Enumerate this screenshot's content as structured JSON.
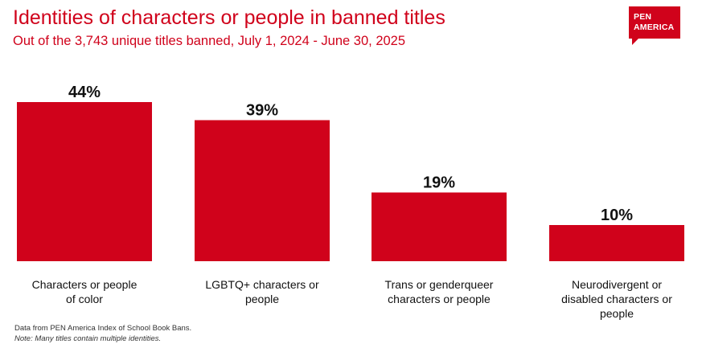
{
  "header": {
    "title": "Identities of characters or people in banned titles",
    "subtitle": "Out of the 3,743 unique titles banned, July 1, 2024 - June 30, 2025"
  },
  "logo": {
    "line1": "PEN",
    "line2": "AMERICA"
  },
  "chart_data": {
    "type": "bar",
    "categories": [
      [
        "Characters or people",
        "of color"
      ],
      [
        "LGBTQ+ characters or",
        "people"
      ],
      [
        "Trans or genderqueer",
        "characters or people"
      ],
      [
        "Neurodivergent or",
        "disabled characters or",
        "people"
      ]
    ],
    "values": [
      44,
      39,
      19,
      10
    ],
    "value_labels": [
      "44%",
      "39%",
      "19%",
      "10%"
    ],
    "unit": "%",
    "bar_color": "#d0021b",
    "grid": false,
    "legend": "none"
  },
  "footer": {
    "source": "Data from PEN America Index of School Book Bans.",
    "note": "Note: Many titles contain multiple identities."
  },
  "colors": {
    "accent": "#d0021b",
    "text": "#111111"
  }
}
